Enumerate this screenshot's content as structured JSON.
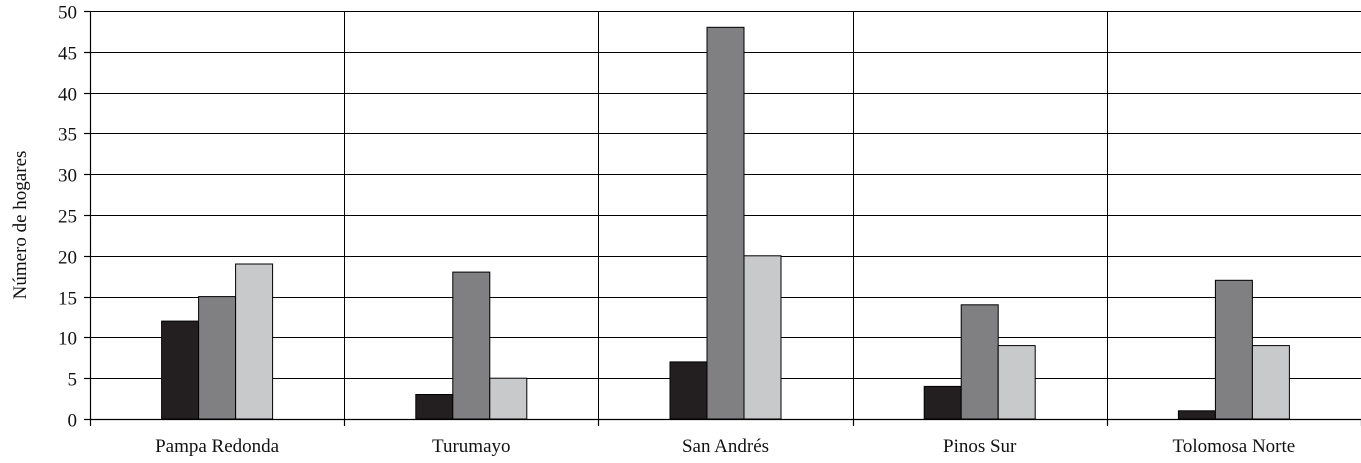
{
  "chart_data": {
    "type": "bar",
    "title": "",
    "xlabel": "",
    "ylabel": "Número de hogares",
    "ylim": [
      0,
      50
    ],
    "yticks": [
      0,
      5,
      10,
      15,
      20,
      25,
      30,
      35,
      40,
      45,
      50
    ],
    "grid": true,
    "legend": "none",
    "categories": [
      "Pampa Redonda",
      "Turumayo",
      "San Andrés",
      "Pinos Sur",
      "Tolomosa Norte"
    ],
    "series": [
      {
        "color": "#231f20",
        "values": [
          12,
          3,
          7,
          4,
          1
        ]
      },
      {
        "color": "#808083",
        "values": [
          15,
          18,
          48,
          14,
          17
        ]
      },
      {
        "color": "#c8c9cb",
        "values": [
          19,
          5,
          20,
          9,
          9
        ]
      }
    ]
  }
}
